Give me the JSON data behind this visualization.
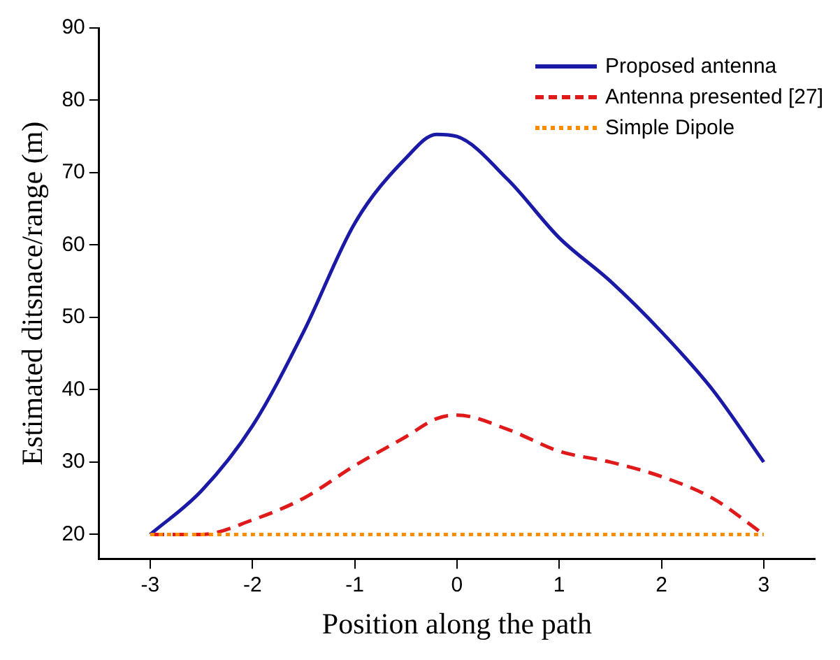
{
  "chart_data": {
    "type": "line",
    "xlabel": "Position along the path",
    "ylabel": "Estimated ditsnace/range (m)",
    "x": [
      -3,
      -2.5,
      -2,
      -1.5,
      -1,
      -0.5,
      -0.2,
      0,
      0.5,
      1,
      1.5,
      2,
      2.5,
      3
    ],
    "series": [
      {
        "name": "Proposed antenna",
        "color": "#1a1aa6",
        "line_style": "solid",
        "values": [
          20,
          26,
          35,
          48,
          63,
          72,
          75.3,
          75,
          69,
          61,
          55,
          48,
          40,
          30
        ]
      },
      {
        "name": "Antenna presented [27]",
        "color": "#e01a1a",
        "line_style": "dashed",
        "values": [
          20,
          20,
          22,
          25,
          29.5,
          33.5,
          36,
          36.5,
          34.5,
          31.5,
          30,
          28,
          25,
          20
        ]
      },
      {
        "name": "Simple Dipole",
        "color": "#ff8c00",
        "line_style": "dotted",
        "values": [
          20,
          20,
          20,
          20,
          20,
          20,
          20,
          20,
          20,
          20,
          20,
          20,
          20,
          20
        ]
      }
    ],
    "xlim": [
      -3.5,
      3.5
    ],
    "xticks": [
      -3,
      -2,
      -1,
      0,
      1,
      2,
      3
    ],
    "ylim": [
      16.6,
      90
    ],
    "yticks": [
      20,
      30,
      40,
      50,
      60,
      70,
      80,
      90
    ],
    "grid": false,
    "legend": "top right",
    "marker": "none"
  }
}
